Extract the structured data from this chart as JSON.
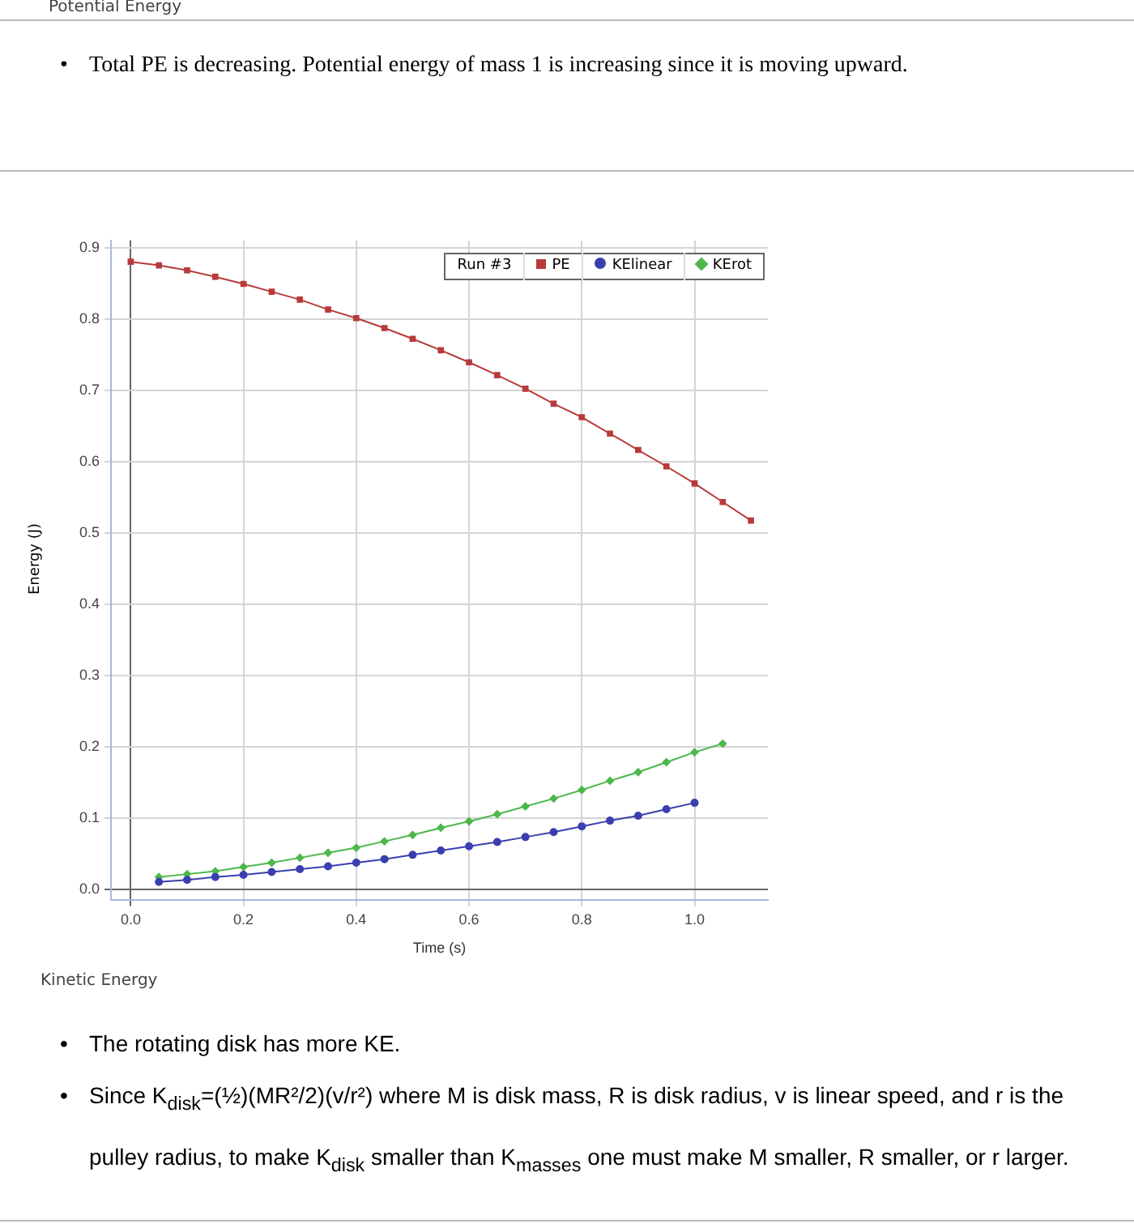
{
  "chart_data": {
    "type": "line",
    "title": "Potential Energy",
    "annotations": [
      "•\tTotal PE is decreasing. Potential energy of mass 1 is increasing since it is moving upward.",
      "Kinetic Energy",
      "•\tThe rotating disk has more KE.",
      "•\tSince K$_{disk}$=(½)(MR²/2)(v/r²) where M is disk mass, R is disk radius, v is linear speed, and r is the pulley radius, to make K$_{disk}$ smaller than K$_{masses}$ one must make M smaller, R smaller, or r larger."
    ],
    "xlabel": "Time (s)",
    "ylabel": "Energy (J)",
    "legend_title": "Run #3",
    "xlim": [
      -0.035,
      1.13
    ],
    "ylim": [
      -0.015,
      0.91
    ],
    "xticks": [
      {
        "value": 0,
        "label": "0.0"
      },
      0.2,
      0.4,
      0.6,
      0.8,
      {
        "value": 1,
        "label": "1.0"
      }
    ],
    "yticks": [
      {
        "value": 0,
        "label": "0.0"
      },
      0.1,
      0.2,
      0.3,
      0.4,
      0.5,
      0.6,
      0.7,
      0.8,
      0.9
    ],
    "grid": true,
    "legend": "top right",
    "line_style": "solid",
    "series": [
      {
        "name": "PE",
        "color": "#b83a3a",
        "marker": "square",
        "x": [
          0,
          0.05,
          0.1,
          0.15,
          0.2,
          0.25,
          0.3,
          0.35,
          0.4,
          0.45,
          0.5,
          0.55,
          0.6,
          0.65,
          0.7,
          0.75,
          0.8,
          0.85,
          0.9,
          0.95,
          1.0,
          1.05,
          1.1
        ],
        "values": [
          0.88,
          0.875,
          0.868,
          0.859,
          0.849,
          0.838,
          0.827,
          0.813,
          0.801,
          0.787,
          0.772,
          0.756,
          0.739,
          0.721,
          0.702,
          0.681,
          0.662,
          0.639,
          0.616,
          0.593,
          0.569,
          0.543,
          0.517
        ]
      },
      {
        "name": "KElinear",
        "color": "#3a3fb0",
        "marker": "circle",
        "x": [
          0.05,
          0.1,
          0.15,
          0.2,
          0.25,
          0.3,
          0.35,
          0.4,
          0.45,
          0.5,
          0.55,
          0.6,
          0.65,
          0.7,
          0.75,
          0.8,
          0.85,
          0.9,
          0.95,
          1.0
        ],
        "values": [
          0.01,
          0.013,
          0.017,
          0.02,
          0.024,
          0.028,
          0.032,
          0.037,
          0.042,
          0.048,
          0.054,
          0.06,
          0.066,
          0.073,
          0.08,
          0.088,
          0.096,
          0.103,
          0.112,
          0.121
        ]
      },
      {
        "name": "KErot",
        "color": "#4cb84c",
        "marker": "diamond",
        "x": [
          0.05,
          0.1,
          0.15,
          0.2,
          0.25,
          0.3,
          0.35,
          0.4,
          0.45,
          0.5,
          0.55,
          0.6,
          0.65,
          0.7,
          0.75,
          0.8,
          0.85,
          0.9,
          0.95,
          1.0,
          1.05
        ],
        "values": [
          0.017,
          0.021,
          0.025,
          0.031,
          0.037,
          0.044,
          0.051,
          0.058,
          0.067,
          0.076,
          0.086,
          0.095,
          0.105,
          0.116,
          0.127,
          0.139,
          0.152,
          0.164,
          0.178,
          0.192,
          0.204
        ]
      }
    ]
  }
}
